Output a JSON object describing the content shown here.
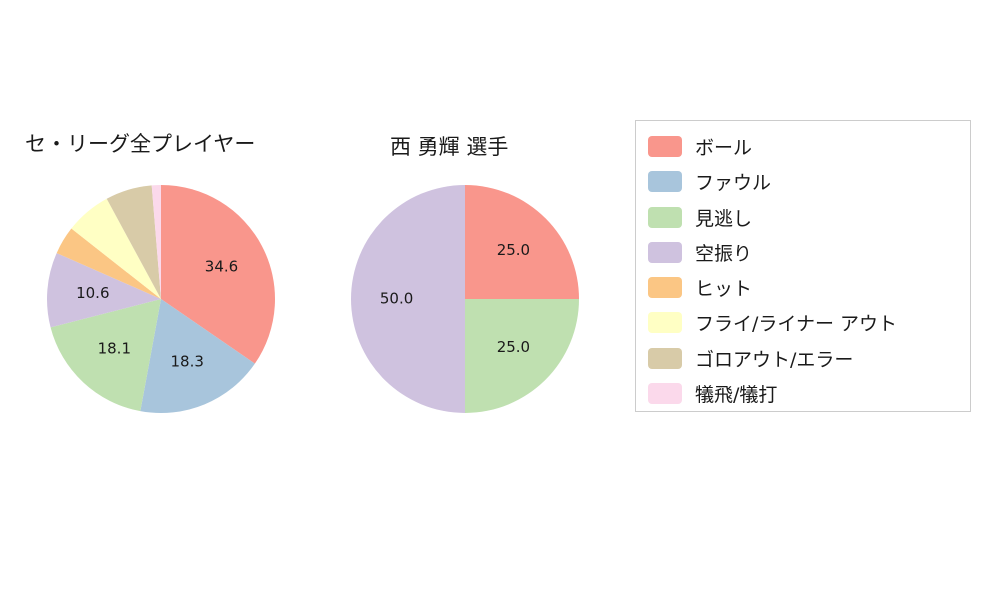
{
  "chart_data": [
    {
      "type": "pie",
      "title": "セ・リーグ全プレイヤー",
      "start_angle_deg": 90,
      "direction": "clockwise",
      "slices": [
        {
          "name": "ボール",
          "value": 34.6,
          "label": "34.6",
          "color": "#f9968c"
        },
        {
          "name": "ファウル",
          "value": 18.3,
          "label": "18.3",
          "color": "#a8c5dc"
        },
        {
          "name": "見逃し",
          "value": 18.1,
          "label": "18.1",
          "color": "#bfe0b0"
        },
        {
          "name": "空振り",
          "value": 10.6,
          "label": "10.6",
          "color": "#cfc2df"
        },
        {
          "name": "ヒット",
          "value": 4.0,
          "label": "",
          "color": "#fbc684"
        },
        {
          "name": "フライ/ライナー アウト",
          "value": 6.5,
          "label": "",
          "color": "#ffffc4"
        },
        {
          "name": "ゴロアウト/エラー",
          "value": 6.6,
          "label": "",
          "color": "#d8cba8"
        },
        {
          "name": "犠飛/犠打",
          "value": 1.3,
          "label": "",
          "color": "#fbd9eb"
        }
      ]
    },
    {
      "type": "pie",
      "title": "西 勇輝 選手",
      "start_angle_deg": 90,
      "direction": "clockwise",
      "slices": [
        {
          "name": "ボール",
          "value": 25.0,
          "label": "25.0",
          "color": "#f9968c"
        },
        {
          "name": "見逃し",
          "value": 25.0,
          "label": "25.0",
          "color": "#bfe0b0"
        },
        {
          "name": "空振り",
          "value": 50.0,
          "label": "50.0",
          "color": "#cfc2df"
        }
      ]
    }
  ],
  "legend": {
    "items": [
      {
        "label": "ボール",
        "color": "#f9968c"
      },
      {
        "label": "ファウル",
        "color": "#a8c5dc"
      },
      {
        "label": "見逃し",
        "color": "#bfe0b0"
      },
      {
        "label": "空振り",
        "color": "#cfc2df"
      },
      {
        "label": "ヒット",
        "color": "#fbc684"
      },
      {
        "label": "フライ/ライナー アウト",
        "color": "#ffffc4"
      },
      {
        "label": "ゴロアウト/エラー",
        "color": "#d8cba8"
      },
      {
        "label": "犠飛/犠打",
        "color": "#fbd9eb"
      }
    ]
  }
}
